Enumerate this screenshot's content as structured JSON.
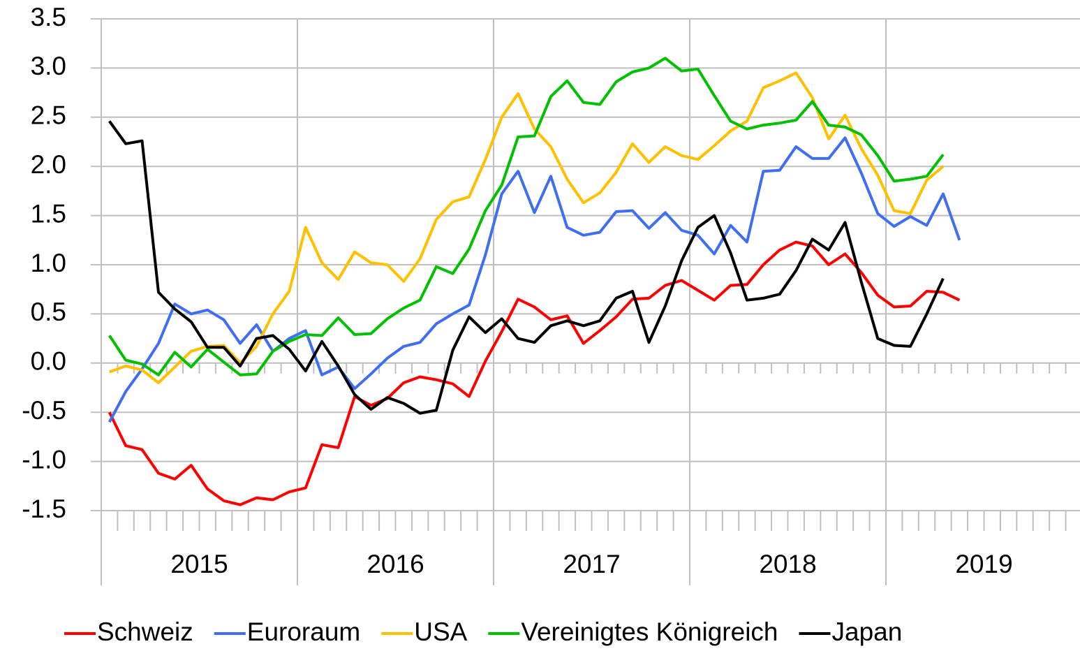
{
  "chart_data": {
    "type": "line",
    "years": [
      "2015",
      "2016",
      "2017",
      "2018",
      "2019"
    ],
    "ylim": [
      -1.5,
      3.5
    ],
    "yticks": [
      -1.5,
      {
        "value": -1,
        "label": "-1.0"
      },
      -0.5,
      {
        "value": 0,
        "label": "0.0"
      },
      0.5,
      {
        "value": 1,
        "label": "1.0"
      },
      1.5,
      {
        "value": 2,
        "label": "2.0"
      },
      2.5,
      {
        "value": 3,
        "label": "3.0"
      },
      3.5
    ],
    "grid": true,
    "legend": "bottom",
    "series": [
      {
        "name": "Schweiz",
        "color": "#ff0000",
        "values": [
          -0.5,
          -0.84,
          -0.88,
          -1.12,
          -1.18,
          -1.04,
          -1.28,
          -1.4,
          -1.44,
          -1.37,
          -1.39,
          -1.31,
          -1.27,
          -0.83,
          -0.86,
          -0.34,
          -0.43,
          -0.36,
          -0.2,
          -0.14,
          -0.17,
          -0.21,
          -0.34,
          0.02,
          0.32,
          0.65,
          0.57,
          0.44,
          0.48,
          0.2,
          0.33,
          0.47,
          0.65,
          0.66,
          0.79,
          0.84,
          0.74,
          0.64,
          0.79,
          0.8,
          1.0,
          1.15,
          1.23,
          1.19,
          1.0,
          1.11,
          0.92,
          0.69,
          0.57,
          0.58,
          0.73,
          0.72,
          0.64,
          null,
          null,
          null,
          null,
          null,
          null,
          null
        ]
      },
      {
        "name": "Euroraum",
        "color": "#3f6ff0",
        "values": [
          -0.6,
          -0.29,
          -0.06,
          0.2,
          0.6,
          0.5,
          0.54,
          0.44,
          0.2,
          0.39,
          0.12,
          0.25,
          0.33,
          -0.12,
          -0.04,
          -0.26,
          -0.11,
          0.05,
          0.17,
          0.21,
          0.4,
          0.5,
          0.59,
          1.1,
          1.72,
          1.95,
          1.53,
          1.9,
          1.38,
          1.3,
          1.33,
          1.54,
          1.55,
          1.37,
          1.53,
          1.35,
          1.3,
          1.11,
          1.4,
          1.23,
          1.95,
          1.96,
          2.2,
          2.08,
          2.08,
          2.29,
          1.93,
          1.52,
          1.39,
          1.49,
          1.4,
          1.72,
          1.25,
          null,
          null,
          null,
          null,
          null,
          null,
          null
        ]
      },
      {
        "name": "USA",
        "color": "#ffc000",
        "values": [
          -0.09,
          -0.03,
          -0.07,
          -0.2,
          -0.04,
          0.12,
          0.17,
          0.18,
          0.0,
          0.17,
          0.5,
          0.73,
          1.38,
          1.02,
          0.85,
          1.13,
          1.02,
          1.0,
          0.83,
          1.06,
          1.46,
          1.64,
          1.69,
          2.07,
          2.5,
          2.74,
          2.38,
          2.2,
          1.87,
          1.63,
          1.73,
          1.94,
          2.23,
          2.04,
          2.2,
          2.11,
          2.07,
          2.21,
          2.36,
          2.46,
          2.8,
          2.87,
          2.95,
          2.7,
          2.28,
          2.52,
          2.18,
          1.91,
          1.55,
          1.52,
          1.86,
          2.0,
          null,
          null,
          null,
          null,
          null,
          null,
          null,
          null
        ]
      },
      {
        "name": "Vereinigtes Königreich",
        "color": "#00c000",
        "values": [
          0.28,
          0.03,
          -0.01,
          -0.12,
          0.11,
          -0.04,
          0.14,
          0.01,
          -0.12,
          -0.11,
          0.12,
          0.22,
          0.29,
          0.28,
          0.46,
          0.29,
          0.3,
          0.45,
          0.56,
          0.64,
          0.98,
          0.91,
          1.16,
          1.55,
          1.81,
          2.3,
          2.31,
          2.71,
          2.87,
          2.65,
          2.63,
          2.86,
          2.96,
          3.0,
          3.1,
          2.97,
          2.99,
          2.72,
          2.46,
          2.38,
          2.42,
          2.44,
          2.47,
          2.66,
          2.42,
          2.4,
          2.32,
          2.11,
          1.85,
          1.87,
          1.9,
          2.12,
          null,
          null,
          null,
          null,
          null,
          null,
          null,
          null
        ]
      },
      {
        "name": "Japan",
        "color": "#000000",
        "values": [
          2.46,
          2.23,
          2.26,
          0.72,
          0.55,
          0.42,
          0.16,
          0.16,
          -0.03,
          0.25,
          0.28,
          0.14,
          -0.08,
          0.22,
          -0.03,
          -0.32,
          -0.47,
          -0.35,
          -0.41,
          -0.51,
          -0.48,
          0.13,
          0.47,
          0.31,
          0.45,
          0.25,
          0.21,
          0.38,
          0.43,
          0.38,
          0.43,
          0.66,
          0.73,
          0.21,
          0.58,
          1.04,
          1.38,
          1.5,
          1.12,
          0.64,
          0.66,
          0.7,
          0.94,
          1.26,
          1.15,
          1.43,
          0.82,
          0.25,
          0.18,
          0.17,
          0.5,
          0.86,
          null,
          null,
          null,
          null,
          null,
          null,
          null,
          null
        ]
      }
    ]
  }
}
